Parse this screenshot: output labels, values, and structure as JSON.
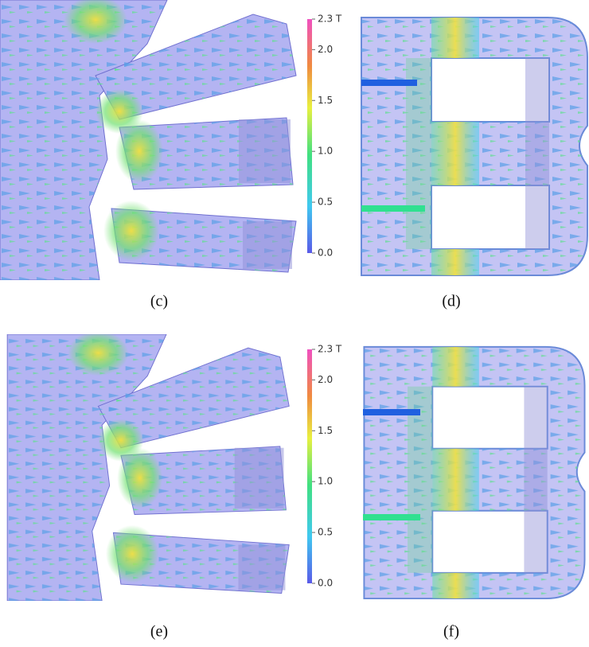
{
  "panels": [
    {
      "label": "(c)"
    },
    {
      "label": "(d)"
    },
    {
      "label": "(e)"
    },
    {
      "label": "(f)"
    }
  ],
  "colorbars": [
    {
      "range": [
        0,
        2.3
      ],
      "ticks": [
        {
          "value": 2.3,
          "label": "2.3 T"
        },
        {
          "value": 2,
          "label": "2.0"
        },
        {
          "value": 1.5,
          "label": "1.5"
        },
        {
          "value": 1,
          "label": "1.0"
        },
        {
          "value": 0.5,
          "label": "0.5"
        },
        {
          "value": 0,
          "label": "0.0"
        }
      ]
    },
    {
      "range": [
        0,
        2.3
      ],
      "ticks": [
        {
          "value": 2.3,
          "label": "2.3 T"
        },
        {
          "value": 2,
          "label": "2.0"
        },
        {
          "value": 1.5,
          "label": "1.5"
        },
        {
          "value": 1,
          "label": "1.0"
        },
        {
          "value": 0.5,
          "label": "0.5"
        },
        {
          "value": 0,
          "label": "0.0"
        }
      ]
    }
  ]
}
